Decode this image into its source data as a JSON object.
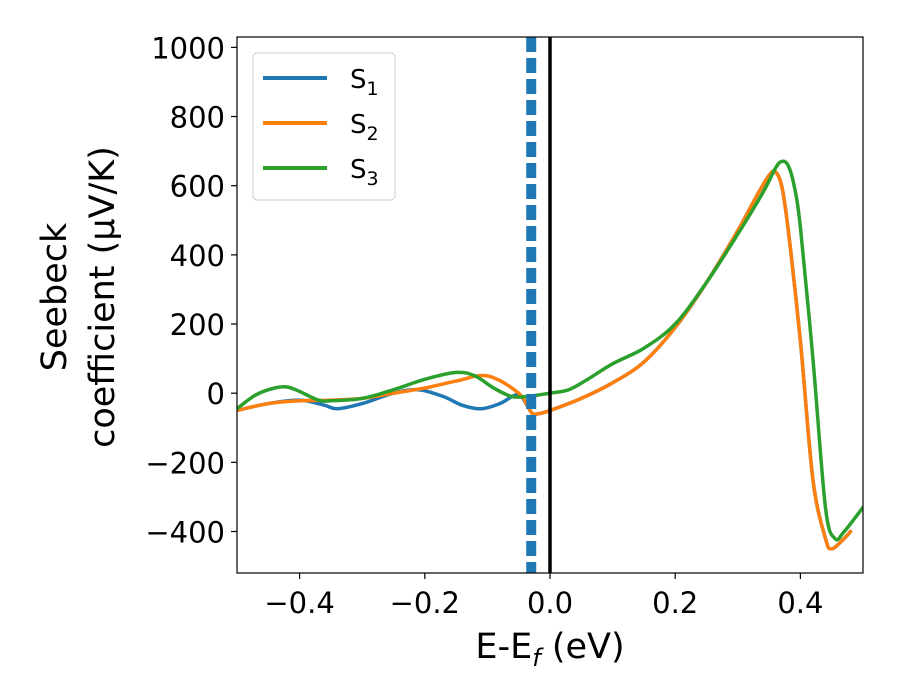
{
  "chart_data": {
    "type": "line",
    "xlabel": "E-E",
    "xlabel_sub": "f",
    "xlabel_unit": " (eV)",
    "ylabel_line1": "Seebeck",
    "ylabel_line2": "coefficient  (μV/K)",
    "xlim": [
      -0.5,
      0.5
    ],
    "ylim": [
      -520,
      1030
    ],
    "x_ticks": [
      -0.4,
      -0.2,
      0.0,
      0.2,
      0.4
    ],
    "x_tick_labels": [
      "−0.4",
      "−0.2",
      "0.0",
      "0.2",
      "0.4"
    ],
    "y_ticks": [
      -400,
      -200,
      0,
      200,
      400,
      600,
      800,
      1000
    ],
    "y_tick_labels": [
      "−400",
      "−200",
      "0",
      "200",
      "400",
      "600",
      "800",
      "1000"
    ],
    "grid": false,
    "legend_position": "top-left",
    "vlines": [
      {
        "x": -0.03,
        "color": "#1f77b4",
        "style": "dashed"
      },
      {
        "x": 0.0,
        "color": "#000000",
        "style": "solid"
      }
    ],
    "series": [
      {
        "name": "S",
        "subscript": "1",
        "color": "#1f77b4",
        "x": [
          -0.5,
          -0.45,
          -0.4,
          -0.36,
          -0.34,
          -0.3,
          -0.25,
          -0.21,
          -0.17,
          -0.14,
          -0.11,
          -0.08,
          -0.05,
          -0.03,
          -0.02,
          0.0,
          0.05,
          0.1,
          0.15,
          0.2,
          0.25,
          0.3,
          0.33,
          0.35,
          0.36,
          0.37,
          0.38,
          0.4,
          0.42,
          0.44,
          0.45,
          0.47,
          0.48
        ],
        "y": [
          -50,
          -30,
          -20,
          -35,
          -45,
          -30,
          0,
          10,
          -10,
          -35,
          -45,
          -30,
          -5,
          -55,
          -60,
          -50,
          -15,
          30,
          90,
          190,
          320,
          470,
          570,
          630,
          640,
          600,
          480,
          150,
          -250,
          -420,
          -450,
          -420,
          -400
        ]
      },
      {
        "name": "S",
        "subscript": "2",
        "color": "#ff7f0e",
        "x": [
          -0.5,
          -0.45,
          -0.4,
          -0.35,
          -0.3,
          -0.25,
          -0.2,
          -0.15,
          -0.1,
          -0.05,
          -0.03,
          -0.02,
          0.0,
          0.05,
          0.1,
          0.15,
          0.2,
          0.25,
          0.3,
          0.33,
          0.35,
          0.36,
          0.37,
          0.38,
          0.4,
          0.42,
          0.44,
          0.45,
          0.47,
          0.48
        ],
        "y": [
          -50,
          -30,
          -22,
          -20,
          -15,
          0,
          15,
          35,
          50,
          0,
          -55,
          -60,
          -50,
          -15,
          30,
          90,
          190,
          320,
          470,
          570,
          630,
          640,
          600,
          480,
          150,
          -250,
          -420,
          -450,
          -420,
          -400
        ]
      },
      {
        "name": "S",
        "subscript": "3",
        "color": "#2ca02c",
        "x": [
          -0.5,
          -0.47,
          -0.44,
          -0.42,
          -0.4,
          -0.37,
          -0.35,
          -0.3,
          -0.25,
          -0.2,
          -0.15,
          -0.12,
          -0.09,
          -0.06,
          -0.03,
          0.0,
          0.03,
          0.06,
          0.1,
          0.15,
          0.2,
          0.25,
          0.3,
          0.34,
          0.36,
          0.37,
          0.38,
          0.39,
          0.4,
          0.42,
          0.44,
          0.455,
          0.47,
          0.5
        ],
        "y": [
          -45,
          -5,
          15,
          18,
          5,
          -20,
          -22,
          -15,
          10,
          40,
          60,
          50,
          15,
          -10,
          -8,
          0,
          10,
          40,
          85,
          130,
          200,
          320,
          460,
          580,
          650,
          670,
          660,
          600,
          480,
          100,
          -330,
          -420,
          -400,
          -330
        ]
      }
    ]
  }
}
